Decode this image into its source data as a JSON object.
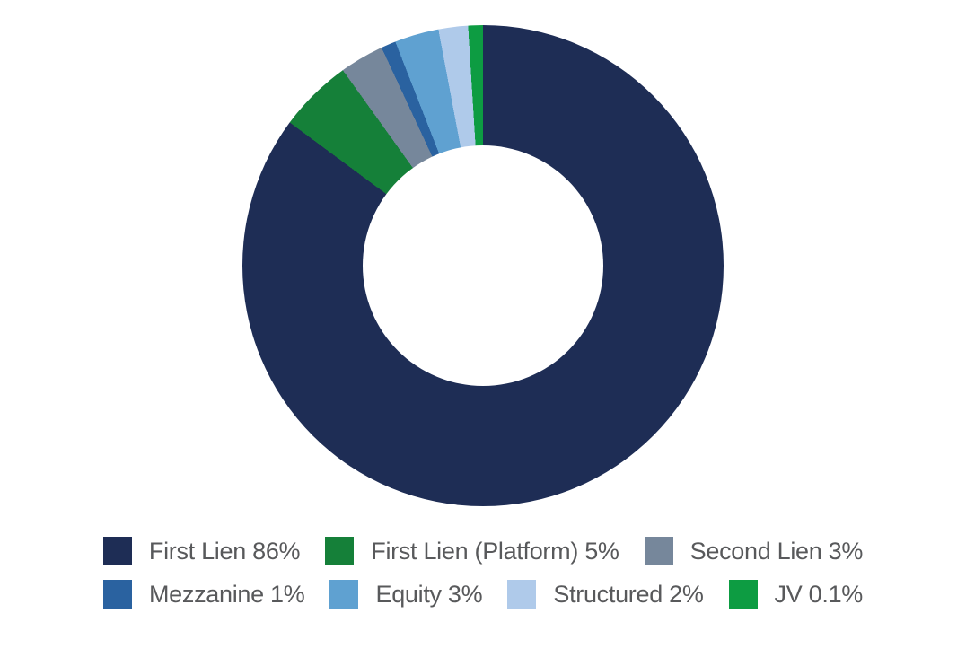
{
  "chart_data": {
    "type": "pie",
    "subtype": "donut",
    "unit": "%",
    "categories": [
      "First Lien",
      "First Lien (Platform)",
      "Second Lien",
      "Mezzanine",
      "Equity",
      "Structured",
      "JV"
    ],
    "values": [
      86,
      5,
      3,
      1,
      3,
      2,
      0.1
    ],
    "slices": [
      {
        "label": "First Lien",
        "value": 86,
        "legend_label": "First Lien 86%",
        "color": "#1E2D55"
      },
      {
        "label": "First Lien (Platform)",
        "value": 5,
        "legend_label": "First Lien (Platform) 5%",
        "color": "#158039"
      },
      {
        "label": "Second Lien",
        "value": 3,
        "legend_label": "Second Lien 3%",
        "color": "#76879B"
      },
      {
        "label": "Mezzanine",
        "value": 1,
        "legend_label": "Mezzanine 1%",
        "color": "#2A62A0"
      },
      {
        "label": "Equity",
        "value": 3,
        "legend_label": "Equity 3%",
        "color": "#5FA1D1"
      },
      {
        "label": "Structured",
        "value": 2,
        "legend_label": "Structured 2%",
        "color": "#AFCAEA"
      },
      {
        "label": "JV",
        "value": 0.1,
        "legend_label": "JV 0.1%",
        "color": "#0D9C42"
      }
    ],
    "start_angle_deg": 0,
    "direction": "clockwise",
    "hole_ratio": 0.5,
    "background": "#FFFFFF",
    "legend": {
      "position": "bottom",
      "text_color": "#58595B",
      "row_groups": [
        [
          0,
          1,
          2
        ],
        [
          3,
          4,
          5,
          6
        ]
      ]
    }
  }
}
